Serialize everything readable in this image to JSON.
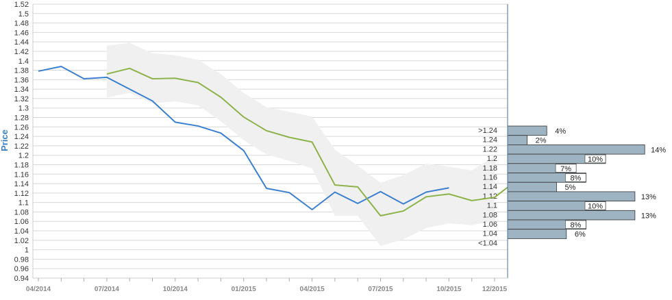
{
  "chart_data": {
    "type": "line",
    "ylabel": "Price",
    "ylim": [
      0.94,
      1.52
    ],
    "y_ticks": [
      "0.94",
      "0.96",
      "0.98",
      "1",
      "1.02",
      "1.04",
      "1.06",
      "1.08",
      "1.1",
      "1.12",
      "1.14",
      "1.16",
      "1.18",
      "1.2",
      "1.22",
      "1.24",
      "1.26",
      "1.28",
      "1.3",
      "1.32",
      "1.34",
      "1.36",
      "1.38",
      "1.4",
      "1.42",
      "1.44",
      "1.46",
      "1.48",
      "1.5",
      "1.52"
    ],
    "x_ticks": [
      "04/2014",
      "07/2014",
      "10/2014",
      "01/2015",
      "04/2015",
      "07/2015",
      "10/2015",
      "12/2015"
    ],
    "grid": true,
    "series": [
      {
        "color": "#3a7fd0",
        "x": [
          "04/2014",
          "05/2014",
          "06/2014",
          "07/2014",
          "08/2014",
          "09/2014",
          "10/2014",
          "11/2014",
          "12/2014",
          "01/2015",
          "02/2015",
          "03/2015",
          "04/2015",
          "05/2015",
          "06/2015",
          "07/2015",
          "08/2015",
          "09/2015",
          "10/2015"
        ],
        "values": [
          1.378,
          1.388,
          1.362,
          1.365,
          1.34,
          1.315,
          1.27,
          1.262,
          1.247,
          1.21,
          1.13,
          1.121,
          1.085,
          1.122,
          1.098,
          1.123,
          1.097,
          1.122,
          1.131
        ]
      },
      {
        "color": "#8db24a",
        "x": [
          "07/2014",
          "08/2014",
          "09/2014",
          "10/2014",
          "11/2014",
          "12/2014",
          "01/2015",
          "02/2015",
          "03/2015",
          "04/2015",
          "05/2015",
          "06/2015",
          "07/2015",
          "08/2015",
          "09/2015",
          "10/2015",
          "11/2015",
          "12/2015"
        ],
        "values": [
          1.372,
          1.384,
          1.362,
          1.363,
          1.354,
          1.323,
          1.281,
          1.252,
          1.238,
          1.228,
          1.137,
          1.133,
          1.072,
          1.082,
          1.112,
          1.118,
          1.104,
          1.111
        ],
        "extends_to_edge": 1.132
      }
    ],
    "band": {
      "color": "#f0f0f0",
      "x": [
        "07/2014",
        "08/2014",
        "09/2014",
        "10/2014",
        "11/2014",
        "12/2014",
        "01/2015",
        "02/2015",
        "03/2015",
        "04/2015",
        "05/2015",
        "06/2015",
        "07/2015",
        "08/2015",
        "09/2015",
        "10/2015",
        "11/2015",
        "12/2015"
      ],
      "upper": [
        1.432,
        1.438,
        1.416,
        1.412,
        1.402,
        1.372,
        1.332,
        1.302,
        1.292,
        1.282,
        1.212,
        1.178,
        1.142,
        1.158,
        1.182,
        1.176,
        1.168,
        1.198
      ],
      "lower": [
        1.322,
        1.332,
        1.31,
        1.314,
        1.306,
        1.272,
        1.232,
        1.202,
        1.188,
        1.172,
        1.072,
        1.072,
        1.008,
        1.022,
        1.046,
        1.056,
        1.052,
        1.062
      ]
    },
    "distribution": {
      "color": "#9fb4c2",
      "stroke": "#333333",
      "categories": [
        ">1.24",
        "1.24",
        "1.22",
        "1.2",
        "1.18",
        "1.16",
        "1.14",
        "1.12",
        "1.1",
        "1.08",
        "1.06",
        "1.04",
        "<1.04"
      ],
      "values": [
        4,
        2,
        14,
        10,
        7,
        8,
        5,
        13,
        10,
        13,
        8,
        6,
        null
      ],
      "labels": [
        "4%",
        "2%",
        "14%",
        "10%",
        "7%",
        "8%",
        "5%",
        "13%",
        "10%",
        "13%",
        "8%",
        "6%",
        ""
      ]
    }
  }
}
